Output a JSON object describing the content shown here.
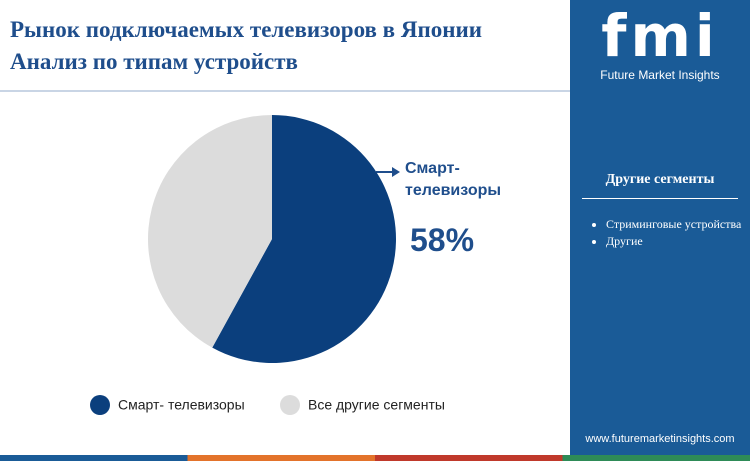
{
  "chart_data": {
    "type": "pie",
    "title": [
      "Рынок подключаемых телевизоров в Японии",
      "Анализ по типам устройств"
    ],
    "categories": [
      "Смарт- телевизоры",
      "Все другие сегменты"
    ],
    "values": [
      58,
      42
    ],
    "value_labels": [
      "58%",
      null
    ],
    "colors": [
      "#0b3f7d",
      "#dcdcdc"
    ]
  },
  "sidebar": {
    "logo": "fmi",
    "brand": "Future Market Insights",
    "heading": "Другие сегменты",
    "items": [
      "Стриминговые устройства",
      "Другие"
    ],
    "url": "www.futuremarketinsights.com"
  }
}
